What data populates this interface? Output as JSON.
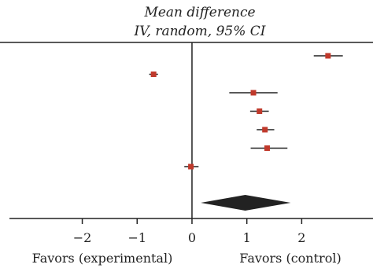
{
  "chart_data": {
    "type": "forest",
    "title_lines": [
      "Mean difference",
      "IV, random, 95% CI"
    ],
    "xlim": [
      -3.5,
      3.3
    ],
    "x_ticks": [
      -2,
      -1,
      0,
      1,
      2
    ],
    "x_tick_labels": [
      "−2",
      "−1",
      "0",
      "1",
      "2"
    ],
    "xlabel_left": "Favors (experimental)",
    "xlabel_right": "Favors (control)",
    "studies": [
      {
        "estimate": 2.48,
        "ci_low": 2.22,
        "ci_high": 2.75
      },
      {
        "estimate": -0.7,
        "ci_low": -0.78,
        "ci_high": -0.62
      },
      {
        "estimate": 1.12,
        "ci_low": 0.68,
        "ci_high": 1.56
      },
      {
        "estimate": 1.23,
        "ci_low": 1.06,
        "ci_high": 1.4
      },
      {
        "estimate": 1.33,
        "ci_low": 1.18,
        "ci_high": 1.5
      },
      {
        "estimate": 1.37,
        "ci_low": 1.07,
        "ci_high": 1.74
      },
      {
        "estimate": -0.02,
        "ci_low": -0.14,
        "ci_high": 0.12
      }
    ],
    "pooled": {
      "estimate": 0.97,
      "ci_low": 0.16,
      "ci_high": 1.8
    },
    "colors": {
      "marker": "#c0392b",
      "line": "#222222",
      "diamond": "#222222"
    }
  }
}
